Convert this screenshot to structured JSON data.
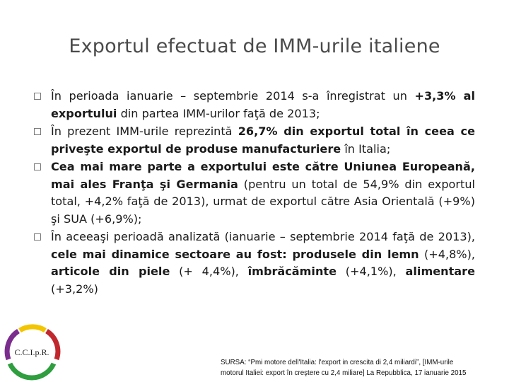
{
  "title": "Exportul efectuat de IMM-urile italiene",
  "bullets": [
    {
      "parts": [
        {
          "text": "În perioada ianuarie – septembrie 2014 s-a înregistrat un ",
          "bold": false
        },
        {
          "text": "+3,3% al exportului",
          "bold": true
        },
        {
          "text": " din partea IMM-urilor faţă de 2013;",
          "bold": false
        }
      ]
    },
    {
      "parts": [
        {
          "text": "În prezent IMM-urile reprezintă ",
          "bold": false
        },
        {
          "text": "26,7% din exportul total în ceea ce priveşte exportul de produse manufacturiere",
          "bold": true
        },
        {
          "text": "  în Italia;",
          "bold": false
        }
      ]
    },
    {
      "parts": [
        {
          "text": "Cea mai mare parte a exportului este către Uniunea Europeană, mai ales Franţa şi Germania",
          "bold": true
        },
        {
          "text": " (pentru un total de 54,9% din exportul total, +4,2% faţă de 2013), urmat de exportul către Asia Orientală  (+9%) şi SUA (+6,9%);",
          "bold": false
        }
      ]
    },
    {
      "parts": [
        {
          "text": "În aceeaşi perioadă analizată (ianuarie – septembrie 2014 faţă de 2013), ",
          "bold": false
        },
        {
          "text": "cele mai dinamice sectoare au fost: produsele din lemn",
          "bold": true
        },
        {
          "text": " (+4,8%), ",
          "bold": false
        },
        {
          "text": "articole din piele",
          "bold": true
        },
        {
          "text": " (+ 4,4%), ",
          "bold": false
        },
        {
          "text": "îmbrăcăminte",
          "bold": true
        },
        {
          "text": " (+4,1%), ",
          "bold": false
        },
        {
          "text": "alimentare",
          "bold": true
        },
        {
          "text": " (+3,2%)",
          "bold": false
        }
      ]
    }
  ],
  "logo": {
    "text": "C.C.I.p.R.",
    "colors": [
      "#7b2d8e",
      "#f2c500",
      "#c0282d",
      "#2e9e3e"
    ]
  },
  "source": {
    "line1": "SURSA: “Pmi motore dell'Italia: l'export in crescita di 2,4 miliardi”, [IMM-urile",
    "line2": "motorul Italiei: export în creştere cu 2,4 miliare] La Repubblica, 17 ianuarie 2015"
  }
}
